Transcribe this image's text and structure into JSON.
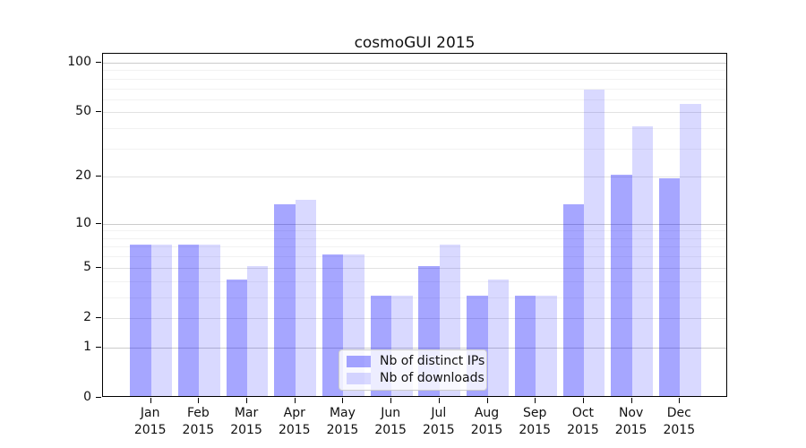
{
  "title": "cosmoGUI 2015",
  "chart_data": {
    "type": "bar",
    "title": "cosmoGUI 2015",
    "categories": [
      "Jan",
      "Feb",
      "Mar",
      "Apr",
      "May",
      "Jun",
      "Jul",
      "Aug",
      "Sep",
      "Oct",
      "Nov",
      "Dec"
    ],
    "year": "2015",
    "series": [
      {
        "name": "Nb of distinct IPs",
        "values": [
          7,
          7,
          4,
          13,
          6,
          3,
          5,
          3,
          3,
          13,
          20,
          19
        ],
        "base_color": "#0000ff",
        "alpha": 0.35,
        "flat_hex": "#a6a6f8"
      },
      {
        "name": "Nb of downloads",
        "values": [
          7,
          7,
          5,
          14,
          6,
          3,
          7,
          4,
          3,
          67,
          40,
          55
        ],
        "base_color": "#0000ff",
        "alpha": 0.15,
        "flat_hex": "#d9d9fb"
      }
    ],
    "xlabel": "",
    "ylabel": "",
    "yscale": "log1p",
    "yticks": [
      0,
      1,
      2,
      5,
      10,
      20,
      50,
      100
    ],
    "minor_gridlines": [
      3,
      4,
      6,
      7,
      8,
      9,
      30,
      40,
      60,
      70,
      80,
      90
    ],
    "ylim": [
      0,
      113
    ],
    "grid": true,
    "legend_position": "lower center",
    "grid_color_decade": "#cccccc",
    "grid_color_major": "#e2e2e2",
    "grid_color_minor": "#f2f2f2"
  }
}
